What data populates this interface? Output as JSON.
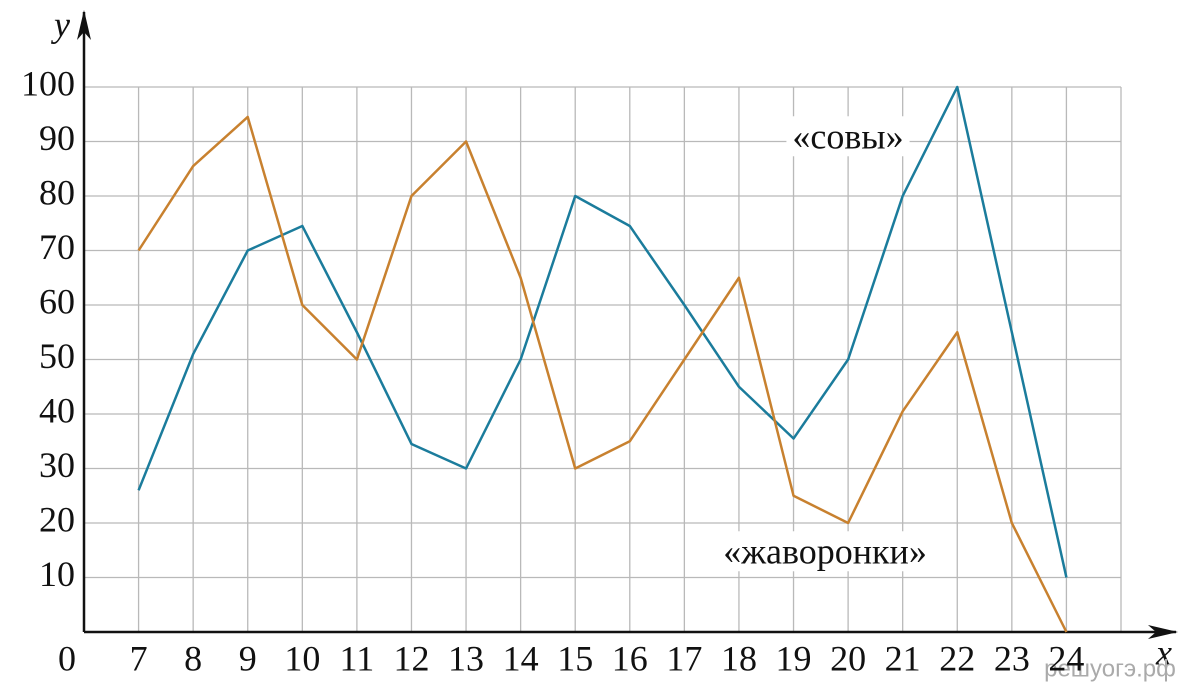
{
  "chart_data": {
    "type": "line",
    "x_label": "x",
    "y_label": "y",
    "origin_label": "0",
    "x": [
      7,
      8,
      9,
      10,
      11,
      12,
      13,
      14,
      15,
      16,
      17,
      18,
      19,
      20,
      21,
      22,
      23,
      24
    ],
    "series": [
      {
        "name": "«совы»",
        "color": "#1b7c9c",
        "values": [
          26,
          51,
          70,
          74.5,
          55,
          34.5,
          30,
          50,
          80,
          74.5,
          60,
          45,
          35.5,
          50,
          80,
          100,
          55,
          10
        ]
      },
      {
        "name": "«жаворонки»",
        "color": "#c8812f",
        "values": [
          70,
          85.5,
          94.5,
          60,
          50,
          80,
          90,
          65,
          30,
          35,
          50,
          65,
          25,
          20,
          40.5,
          55,
          20,
          0
        ]
      }
    ],
    "xlim": [
      6,
      25
    ],
    "ylim": [
      0,
      100
    ],
    "xticks": [
      7,
      8,
      9,
      10,
      11,
      12,
      13,
      14,
      15,
      16,
      17,
      18,
      19,
      20,
      21,
      22,
      23,
      24
    ],
    "yticks": [
      10,
      20,
      30,
      40,
      50,
      60,
      70,
      80,
      90,
      100
    ],
    "grid": true,
    "watermark": "решуогэ.рф"
  }
}
